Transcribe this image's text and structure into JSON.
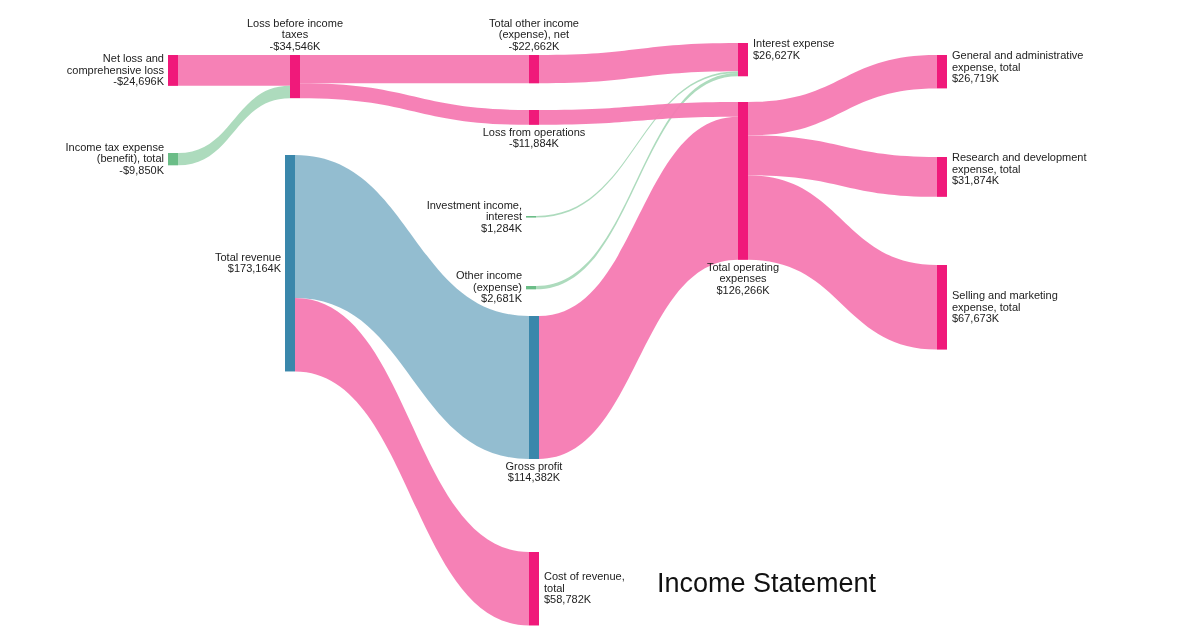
{
  "chart_data": {
    "type": "other",
    "title": "Income Statement",
    "categories": [
      "Net loss and comprehensive loss",
      "Income tax expense (benefit), total",
      "Loss before income taxes",
      "Total revenue",
      "Total other income (expense), net",
      "Loss from operations",
      "Investment income, interest",
      "Other income (expense)",
      "Gross profit",
      "Cost of revenue, total",
      "Interest expense",
      "Total operating expenses",
      "General and administrative expense, total",
      "Research and development expense, total",
      "Selling and marketing expense, total"
    ],
    "values": [
      -24696,
      -9850,
      -34546,
      173164,
      -22662,
      -11884,
      1284,
      2681,
      114382,
      58782,
      26627,
      126266,
      26719,
      31874,
      67673
    ],
    "value_labels": [
      "-$24,696K",
      "-$9,850K",
      "-$34,546K",
      "$173,164K",
      "-$22,662K",
      "-$11,884K",
      "$1,284K",
      "$2,681K",
      "$114,382K",
      "$58,782K",
      "$26,627K",
      "$126,266K",
      "$26,719K",
      "$31,874K",
      "$67,673K"
    ],
    "colors": [
      "#f0197a",
      "#6bbd87",
      "#f0197a",
      "#3a87ab",
      "#f0197a",
      "#f0197a",
      "#6bbd87",
      "#6bbd87",
      "#3a87ab",
      "#f0197a",
      "#f0197a",
      "#f0197a",
      "#f0197a",
      "#f0197a",
      "#f0197a"
    ]
  }
}
